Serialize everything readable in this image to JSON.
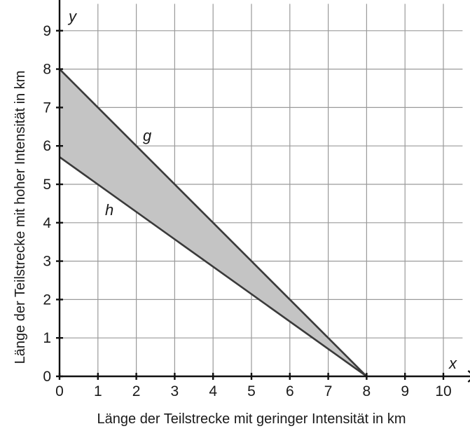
{
  "chart_data": {
    "type": "line",
    "xlabel": "Länge der Teilstrecke mit geringer Intensität in km",
    "ylabel": "Länge der Teilstrecke mit hoher Intensität in km",
    "x_axis_symbol": "x",
    "y_axis_symbol": "y",
    "xlim": [
      0,
      10.5
    ],
    "ylim": [
      0,
      9.7
    ],
    "x_ticks": [
      "0",
      "1",
      "2",
      "3",
      "4",
      "5",
      "6",
      "7",
      "8",
      "9",
      "10"
    ],
    "y_ticks": [
      "0",
      "1",
      "2",
      "3",
      "4",
      "5",
      "6",
      "7",
      "8",
      "9"
    ],
    "grid": true,
    "series": [
      {
        "name": "g",
        "x": [
          0,
          8
        ],
        "y": [
          8,
          0
        ]
      },
      {
        "name": "h",
        "x": [
          0,
          8
        ],
        "y": [
          5.71,
          0
        ]
      }
    ],
    "shaded_region": {
      "between": [
        "g",
        "h"
      ],
      "x_range": [
        0,
        8
      ]
    },
    "colors": {
      "fill": "#c4c4c4",
      "line": "#3a3a3a",
      "grid": "#9a9a9a",
      "axis": "#111111"
    }
  }
}
